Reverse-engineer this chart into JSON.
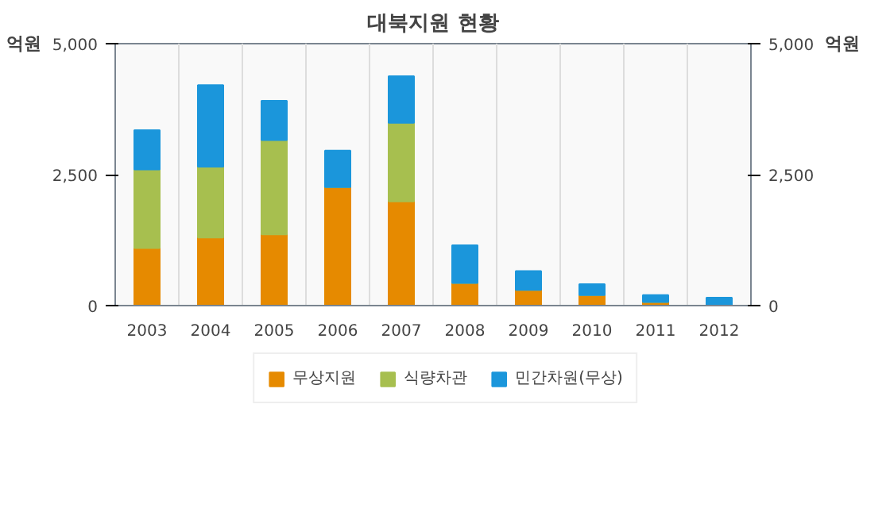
{
  "chart_data": {
    "type": "bar",
    "title": "대북지원 현황",
    "ylabel": "억원",
    "y2label": "억원",
    "categories": [
      "2003",
      "2004",
      "2005",
      "2006",
      "2007",
      "2008",
      "2009",
      "2010",
      "2011",
      "2012"
    ],
    "stacked": true,
    "series": [
      {
        "name": "무상지원",
        "color": "#e68a00",
        "values": [
          1100,
          1300,
          1360,
          2260,
          1990,
          430,
          300,
          200,
          70,
          null
        ]
      },
      {
        "name": "식량차관",
        "color": "#a7bf4f",
        "values": [
          1500,
          1350,
          1800,
          0,
          1500,
          0,
          0,
          0,
          0,
          0
        ]
      },
      {
        "name": "민간차원(무상)",
        "color": "#1b96db",
        "values": [
          750,
          1560,
          750,
          700,
          890,
          720,
          360,
          210,
          130,
          150
        ]
      }
    ],
    "ylim": [
      0,
      5000
    ],
    "yticks": [
      0,
      {
        "value": 2500,
        "label": "2,500"
      },
      {
        "value": 5000,
        "label": "5,000"
      }
    ],
    "y2lim": [
      0,
      5000
    ],
    "y2ticks": [
      0,
      {
        "value": 2500,
        "label": "2,500"
      },
      {
        "value": 5000,
        "label": "5,000"
      }
    ],
    "grid": "x",
    "legend": "bottom"
  }
}
